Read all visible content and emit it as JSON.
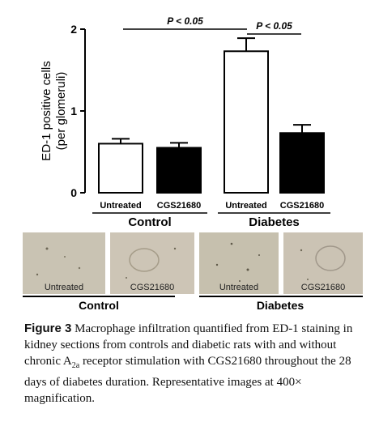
{
  "chart_data": {
    "type": "bar",
    "ylabel": "ED-1 positive cells\n(per glomeruli)",
    "yticks": [
      "0",
      "1",
      "2"
    ],
    "ylim": [
      0,
      2
    ],
    "groups": [
      "Control",
      "Diabetes"
    ],
    "categories": [
      "Untreated",
      "CGS21680",
      "Untreated",
      "CGS21680"
    ],
    "values": [
      0.6,
      0.55,
      1.73,
      0.73
    ],
    "errors": [
      0.06,
      0.06,
      0.16,
      0.1
    ],
    "bar_colors": [
      "#ffffff",
      "#000000",
      "#ffffff",
      "#000000"
    ],
    "annotations": [
      {
        "text": "P < 0.05",
        "from": 0,
        "to": 2
      },
      {
        "text": "P < 0.05",
        "from": 2,
        "to": 3
      }
    ]
  },
  "micrographs": {
    "labels": [
      "Untreated",
      "CGS21680",
      "Untreated",
      "CGS21680"
    ],
    "groups": [
      "Control",
      "Diabetes"
    ]
  },
  "caption": {
    "figure_label": "Figure 3",
    "text_a": "Macrophage infiltration quantified from ED-1 staining in kidney sections from controls and diabetic rats with and without chronic A",
    "subscript": "2a",
    "text_b": " receptor stimulation with CGS21680 throughout the 28 days of diabetes duration. Representative images at 400× magnification."
  }
}
